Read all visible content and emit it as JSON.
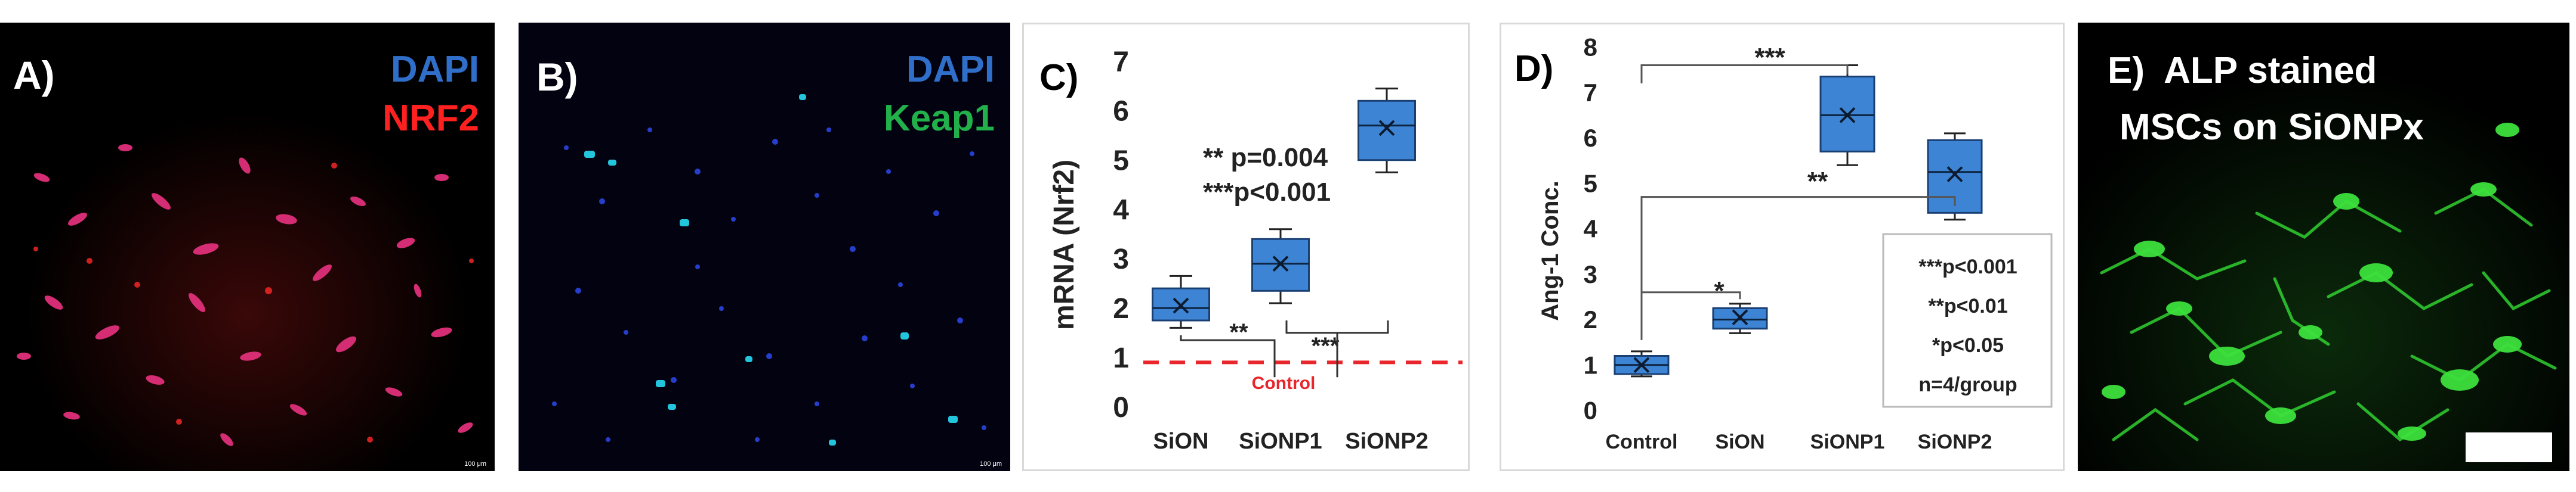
{
  "panels": {
    "a": {
      "label": "A)",
      "stains": [
        {
          "text": "DAPI",
          "color": "#2f6fc9"
        },
        {
          "text": "NRF2",
          "color": "#ff2020"
        }
      ],
      "scale": "100 μm"
    },
    "b": {
      "label": "B)",
      "stains": [
        {
          "text": "DAPI",
          "color": "#2f6fc9"
        },
        {
          "text": "Keap1",
          "color": "#21b04a"
        }
      ],
      "scale": "100 μm"
    },
    "c": {
      "label": "C)",
      "stats_lines": [
        "** p=0.004",
        "***p<0.001"
      ],
      "bracket_marks": [
        "**",
        "***"
      ],
      "control_label": "Control"
    },
    "d": {
      "label": "D)",
      "bracket_marks": [
        "***",
        "**",
        "*"
      ],
      "legend_lines": [
        "***p<0.001",
        "**p<0.01",
        "*p<0.05",
        "n=4/group"
      ]
    },
    "e": {
      "label_line1": "E)  ALP stained",
      "label_line2": "MSCs on SiONPx"
    }
  },
  "chart_data": [
    {
      "type": "box",
      "panel": "C",
      "ylabel": "mRNA (Nrf2)",
      "ylim": [
        0,
        7
      ],
      "yticks": [
        0,
        1,
        2,
        3,
        4,
        5,
        6,
        7
      ],
      "categories": [
        "SiON",
        "SiONP1",
        "SiONP2"
      ],
      "boxes": [
        {
          "min": 1.6,
          "q1": 1.75,
          "median": 2.0,
          "q3": 2.4,
          "max": 2.65,
          "mean": 2.05
        },
        {
          "min": 2.1,
          "q1": 2.35,
          "median": 2.9,
          "q3": 3.4,
          "max": 3.6,
          "mean": 2.9
        },
        {
          "min": 4.75,
          "q1": 5.0,
          "median": 5.7,
          "q3": 6.2,
          "max": 6.45,
          "mean": 5.65
        }
      ],
      "reference_line": {
        "value": 0.9,
        "label": "Control",
        "color": "#e8262b"
      },
      "box_color": "#3d85d4"
    },
    {
      "type": "box",
      "panel": "D",
      "ylabel": "Ang-1 Conc.",
      "ylim": [
        0,
        8
      ],
      "yticks": [
        0,
        1,
        2,
        3,
        4,
        5,
        6,
        7,
        8
      ],
      "categories": [
        "Control",
        "SiON",
        "SiONP1",
        "SiONP2"
      ],
      "boxes": [
        {
          "min": 0.75,
          "q1": 0.8,
          "median": 1.0,
          "q3": 1.2,
          "max": 1.3,
          "mean": 1.0
        },
        {
          "min": 1.7,
          "q1": 1.8,
          "median": 2.0,
          "q3": 2.25,
          "max": 2.35,
          "mean": 2.05
        },
        {
          "min": 5.4,
          "q1": 5.7,
          "median": 6.5,
          "q3": 7.35,
          "max": 7.6,
          "mean": 6.5
        },
        {
          "min": 4.2,
          "q1": 4.35,
          "median": 5.25,
          "q3": 5.95,
          "max": 6.1,
          "mean": 5.2
        }
      ],
      "box_color": "#3d85d4"
    }
  ]
}
